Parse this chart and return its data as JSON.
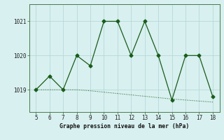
{
  "x": [
    5,
    6,
    7,
    8,
    9,
    10,
    11,
    12,
    13,
    14,
    15,
    16,
    17,
    18
  ],
  "y_main": [
    1019.0,
    1019.4,
    1019.0,
    1020.0,
    1019.7,
    1021.0,
    1021.0,
    1020.0,
    1021.0,
    1020.0,
    1018.7,
    1020.0,
    1020.0,
    1018.8
  ],
  "y_trend": [
    1019.0,
    1019.0,
    1019.0,
    1019.0,
    1018.97,
    1018.93,
    1018.89,
    1018.85,
    1018.81,
    1018.77,
    1018.73,
    1018.7,
    1018.67,
    1018.64
  ],
  "yticks": [
    1019,
    1020,
    1021
  ],
  "xticks": [
    5,
    6,
    7,
    8,
    9,
    10,
    11,
    12,
    13,
    14,
    15,
    16,
    17,
    18
  ],
  "xlabel": "Graphe pression niveau de la mer (hPa)",
  "line_color": "#1a5c1a",
  "bg_color": "#d8f0f0",
  "grid_color": "#b8d8d8",
  "xlim": [
    4.5,
    18.5
  ],
  "ylim": [
    1018.35,
    1021.5
  ]
}
